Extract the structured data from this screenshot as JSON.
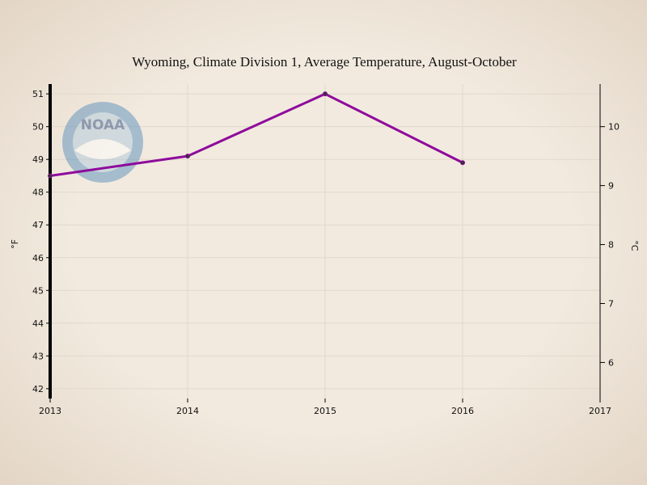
{
  "chart_data": {
    "type": "line",
    "title": "Wyoming, Climate Division 1, Average Temperature, August-October",
    "xlabel": "",
    "ylabel": "°F",
    "ylabel_right": "°C",
    "xlim": [
      2013,
      2017
    ],
    "ylim": [
      41.7,
      51.3
    ],
    "x_ticks": [
      "2013",
      "2014",
      "2015",
      "2016",
      "2017"
    ],
    "y_ticks": [
      "42",
      "43",
      "44",
      "45",
      "46",
      "47",
      "48",
      "49",
      "50",
      "51"
    ],
    "y2_ticks": [
      "6",
      "7",
      "8",
      "9",
      "10"
    ],
    "series": [
      {
        "name": "Average Temperature",
        "color": "#8e0b9c",
        "x": [
          2013,
          2014,
          2015,
          2016
        ],
        "values": [
          48.5,
          49.1,
          51.0,
          48.9
        ]
      }
    ],
    "grid": true
  },
  "logo": {
    "text": "NOAA",
    "icon": "noaa-logo-icon"
  },
  "colors": {
    "background": "#efe6da",
    "grid": "#e2d8cc",
    "line": "#8e0b9c",
    "axis": "#000000"
  }
}
